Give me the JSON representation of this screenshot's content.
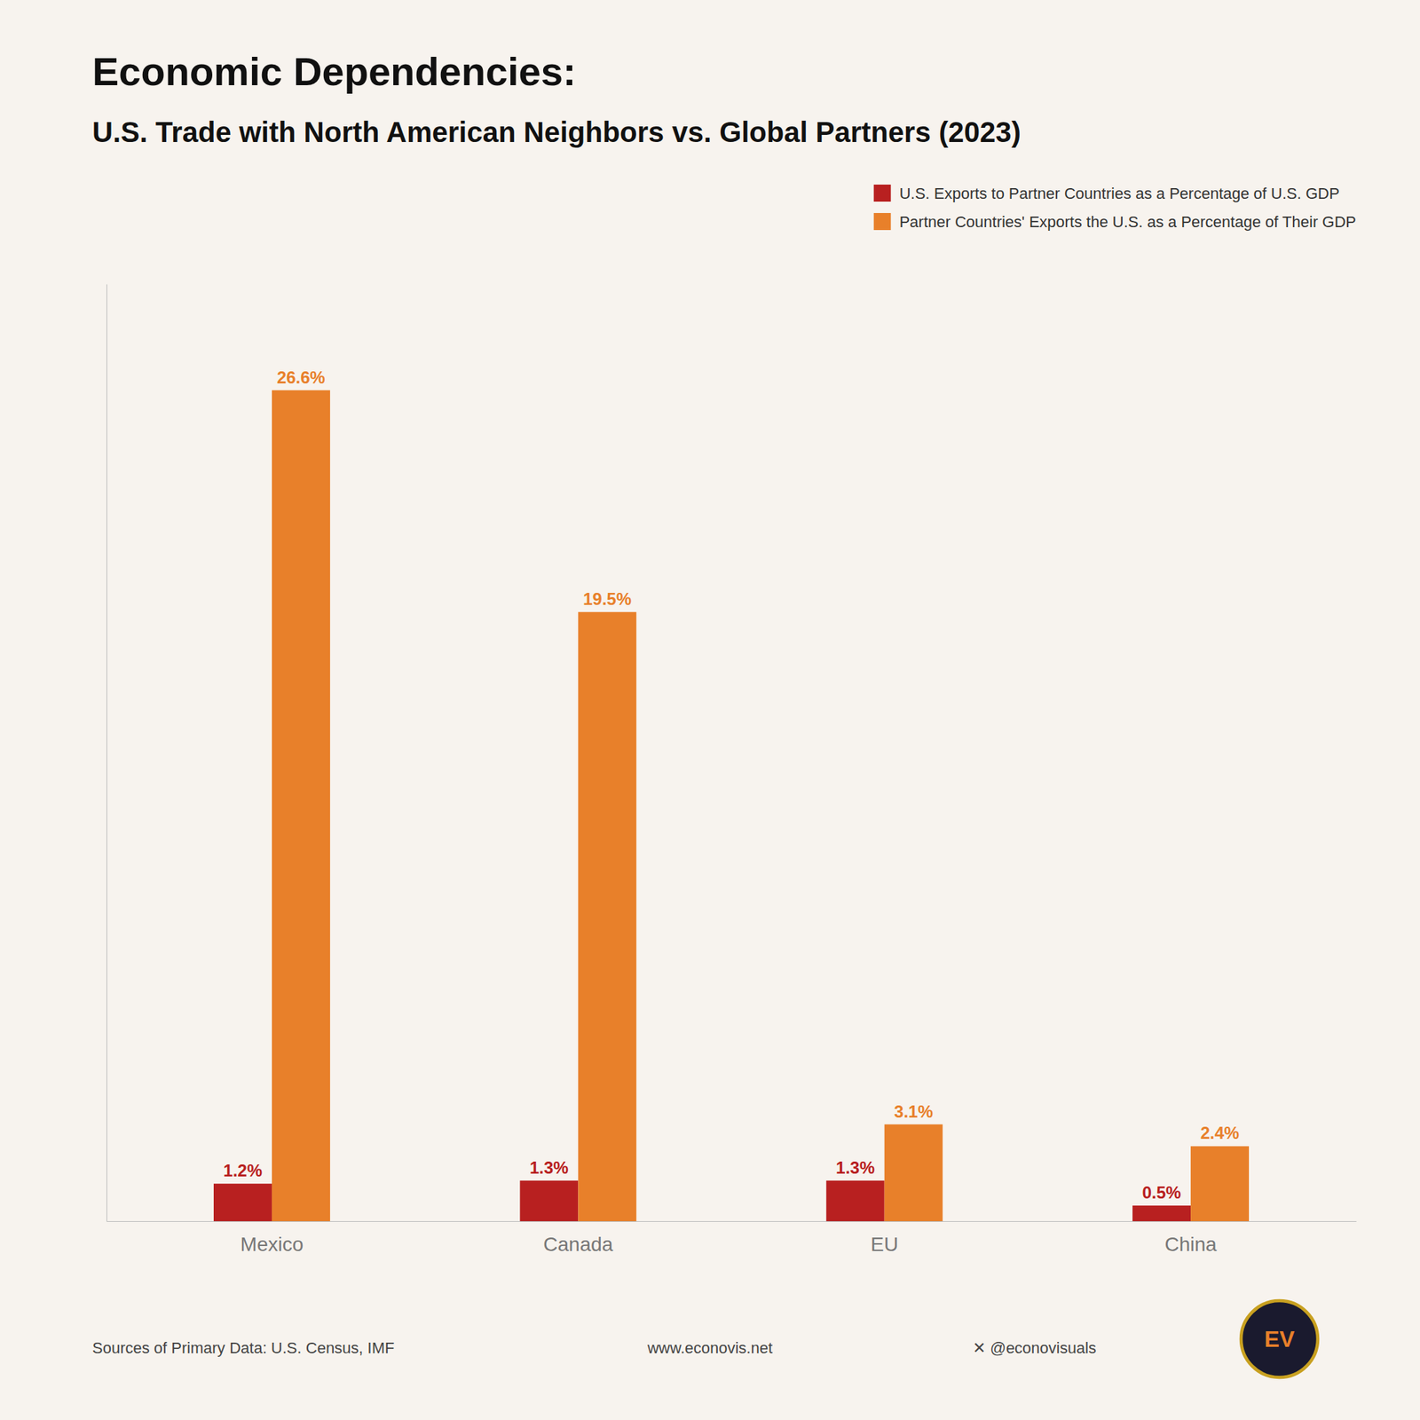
{
  "chart_data": {
    "type": "bar",
    "title": "Economic Dependencies:",
    "subtitle": "U.S. Trade with North American Neighbors vs. Global Partners (2023)",
    "categories": [
      "Mexico",
      "Canada",
      "EU",
      "China"
    ],
    "series": [
      {
        "name": "U.S. Exports to Partner Countries as a Percentage of U.S. GDP",
        "color": "#B82020",
        "values": [
          1.2,
          1.3,
          1.3,
          0.5
        ],
        "value_labels": [
          "1.2%",
          "1.3%",
          "1.3%",
          "0.5%"
        ]
      },
      {
        "name": "Partner Countries' Exports the U.S. as a Percentage of Their GDP",
        "color": "#E8802A",
        "values": [
          26.6,
          19.5,
          3.1,
          2.4
        ],
        "value_labels": [
          "26.6%",
          "19.5%",
          "3.1%",
          "2.4%"
        ]
      }
    ],
    "ylim": [
      0,
      30
    ],
    "yticks": [],
    "grid": false,
    "legend": "upper right",
    "data_labels": true,
    "tick_labels": "x",
    "annotations": [
      "Sources of Primary Data: U.S. Census, IMF",
      "www.econovis.net",
      "✕  @econovisuals",
      "EV"
    ]
  }
}
